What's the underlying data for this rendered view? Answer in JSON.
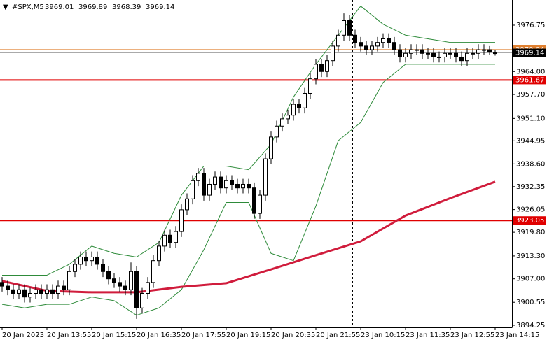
{
  "chart_data": {
    "type": "candlestick",
    "title": "#SPX,M5",
    "header_values": [
      3969.01,
      3969.89,
      3968.39,
      3969.14
    ],
    "categories": [
      "20 Jan 2023",
      null,
      null,
      null,
      null,
      null,
      null,
      null,
      "20 Jan 13:55",
      null,
      null,
      null,
      null,
      null,
      null,
      null,
      "20 Jan 15:15",
      null,
      null,
      null,
      null,
      null,
      null,
      null,
      "20 Jan 16:35",
      null,
      null,
      null,
      null,
      null,
      null,
      null,
      "20 Jan 17:55",
      null,
      null,
      null,
      null,
      null,
      null,
      null,
      "20 Jan 19:15",
      null,
      null,
      null,
      null,
      null,
      null,
      null,
      "20 Jan 20:35",
      null,
      null,
      null,
      null,
      null,
      null,
      null,
      "20 Jan 21:55",
      null,
      null,
      null,
      null,
      null,
      null,
      null,
      "23 Jan 10:15",
      null,
      null,
      null,
      null,
      null,
      null,
      null,
      "23 Jan 11:35",
      null,
      null,
      null,
      null,
      null,
      null,
      null,
      "23 Jan 12:55",
      null,
      null,
      null,
      null,
      null,
      null,
      null,
      "23 Jan 14:15"
    ],
    "candles": [
      [
        3906,
        3907.5,
        3903.5,
        3905
      ],
      [
        3905,
        3906.5,
        3902.5,
        3904
      ],
      [
        3904,
        3905.5,
        3901.5,
        3903
      ],
      [
        3903,
        3905.5,
        3901.5,
        3904
      ],
      [
        3904,
        3905.5,
        3900.5,
        3902
      ],
      [
        3902,
        3904.5,
        3900.5,
        3903
      ],
      [
        3903,
        3905.5,
        3901.5,
        3904
      ],
      [
        3904,
        3905.5,
        3901.5,
        3903
      ],
      [
        3903,
        3905.5,
        3901.5,
        3904
      ],
      [
        3904,
        3905.5,
        3901.5,
        3903
      ],
      [
        3903,
        3906.5,
        3901.5,
        3905
      ],
      [
        3905,
        3906.5,
        3902.5,
        3904
      ],
      [
        3904,
        3910.5,
        3902.5,
        3909
      ],
      [
        3909,
        3912.5,
        3907.5,
        3911
      ],
      [
        3911,
        3914.5,
        3909.5,
        3913
      ],
      [
        3913,
        3914.5,
        3910.5,
        3912
      ],
      [
        3912,
        3914.5,
        3910.5,
        3913
      ],
      [
        3913,
        3914.5,
        3909.5,
        3911
      ],
      [
        3911,
        3912.5,
        3907.5,
        3909
      ],
      [
        3909,
        3910.5,
        3905.5,
        3907
      ],
      [
        3907,
        3908.5,
        3904.5,
        3906
      ],
      [
        3906,
        3907.5,
        3903.5,
        3905
      ],
      [
        3905,
        3906.5,
        3902.5,
        3904
      ],
      [
        3904,
        3911.5,
        3902.5,
        3909
      ],
      [
        3909,
        3910.5,
        3896,
        3899
      ],
      [
        3899,
        3904.5,
        3897.5,
        3903
      ],
      [
        3903,
        3907.5,
        3901.5,
        3906
      ],
      [
        3906,
        3913.5,
        3904.5,
        3912
      ],
      [
        3912,
        3917.5,
        3910.5,
        3916
      ],
      [
        3916,
        3920.5,
        3914.5,
        3919
      ],
      [
        3919,
        3920.5,
        3915.5,
        3917
      ],
      [
        3917,
        3921.5,
        3915.5,
        3920
      ],
      [
        3920,
        3927.5,
        3918.5,
        3926
      ],
      [
        3926,
        3930.5,
        3924.5,
        3929
      ],
      [
        3929,
        3935.5,
        3927.5,
        3934
      ],
      [
        3934,
        3937.5,
        3932.5,
        3936
      ],
      [
        3936,
        3937.5,
        3928.5,
        3930
      ],
      [
        3930,
        3934.5,
        3928.5,
        3933
      ],
      [
        3933,
        3936.5,
        3931.5,
        3935
      ],
      [
        3935,
        3936.5,
        3930.5,
        3932
      ],
      [
        3932,
        3935.5,
        3930.5,
        3934
      ],
      [
        3934,
        3935.5,
        3931.5,
        3933
      ],
      [
        3933,
        3934.5,
        3930.5,
        3932
      ],
      [
        3932,
        3934.5,
        3930.5,
        3933
      ],
      [
        3933,
        3934.5,
        3930.5,
        3932
      ],
      [
        3932,
        3933.5,
        3923.5,
        3925
      ],
      [
        3925,
        3931.5,
        3923.5,
        3930
      ],
      [
        3930,
        3941.5,
        3928.5,
        3940
      ],
      [
        3940,
        3947.5,
        3938.5,
        3946
      ],
      [
        3946,
        3950.5,
        3944.5,
        3949
      ],
      [
        3949,
        3952.5,
        3947.5,
        3951
      ],
      [
        3951,
        3953.5,
        3949.5,
        3952
      ],
      [
        3952,
        3956.5,
        3950.5,
        3955
      ],
      [
        3955,
        3956.5,
        3952.5,
        3954
      ],
      [
        3954,
        3959.5,
        3952.5,
        3958
      ],
      [
        3958,
        3963.5,
        3956.5,
        3962
      ],
      [
        3962,
        3967.5,
        3960.5,
        3966
      ],
      [
        3966,
        3967.5,
        3962.5,
        3964
      ],
      [
        3964,
        3968.5,
        3962.5,
        3967
      ],
      [
        3967,
        3972.5,
        3965.5,
        3971
      ],
      [
        3971,
        3975.5,
        3969.5,
        3974
      ],
      [
        3974,
        3980,
        3972.5,
        3978
      ],
      [
        3978,
        3979.5,
        3972.5,
        3974
      ],
      [
        3974,
        3975.5,
        3970.5,
        3972
      ],
      [
        3972,
        3973.5,
        3969.5,
        3971
      ],
      [
        3971,
        3972.5,
        3968.5,
        3970
      ],
      [
        3970,
        3972.5,
        3968.5,
        3971
      ],
      [
        3971,
        3973.5,
        3969.5,
        3972
      ],
      [
        3972,
        3974.5,
        3970.5,
        3973
      ],
      [
        3973,
        3974.5,
        3970.5,
        3972
      ],
      [
        3972,
        3973.5,
        3968.5,
        3970
      ],
      [
        3970,
        3971.5,
        3966.5,
        3968
      ],
      [
        3968,
        3970.5,
        3966.5,
        3969
      ],
      [
        3969,
        3971.5,
        3967.5,
        3970
      ],
      [
        3970,
        3971.5,
        3968.5,
        3970
      ],
      [
        3970,
        3971.5,
        3967.5,
        3969
      ],
      [
        3969,
        3970.5,
        3967.5,
        3969
      ],
      [
        3969,
        3970.5,
        3966.5,
        3968
      ],
      [
        3968,
        3969.5,
        3966.5,
        3968
      ],
      [
        3968,
        3970.5,
        3966.5,
        3969
      ],
      [
        3969,
        3970.5,
        3967.5,
        3969
      ],
      [
        3969,
        3970.5,
        3966.5,
        3968
      ],
      [
        3968,
        3969.5,
        3965.5,
        3967
      ],
      [
        3967,
        3970.5,
        3965.5,
        3969
      ],
      [
        3969,
        3970.5,
        3967.5,
        3969
      ],
      [
        3969,
        3971.5,
        3967.5,
        3970
      ],
      [
        3970,
        3971.5,
        3968.5,
        3970
      ],
      [
        3970,
        3971,
        3968.5,
        3969.5
      ],
      [
        3969.01,
        3969.89,
        3968.39,
        3969.14
      ]
    ],
    "bands": {
      "color": "#2e8b3a",
      "x": [
        0,
        4,
        8,
        12,
        16,
        20,
        24,
        28,
        32,
        36,
        40,
        44,
        48,
        52,
        56,
        60,
        64,
        68,
        72,
        76,
        80,
        84,
        88
      ],
      "upper": [
        3908,
        3908,
        3908,
        3911,
        3916,
        3914,
        3913,
        3917,
        3930,
        3938,
        3938,
        3937,
        3944,
        3957,
        3966,
        3974,
        3982,
        3977,
        3974,
        3973,
        3972,
        3972,
        3972
      ],
      "lower": [
        3900,
        3899,
        3900,
        3900,
        3902,
        3901,
        3897,
        3899,
        3904,
        3915,
        3928,
        3928,
        3914,
        3912,
        3927,
        3945,
        3950,
        3961,
        3966,
        3966,
        3966,
        3966,
        3966
      ]
    },
    "ma": {
      "color": "#d01c3c",
      "x": [
        0,
        8,
        16,
        24,
        32,
        40,
        48,
        56,
        64,
        72,
        80,
        88
      ],
      "values": [
        3906.4,
        3903.7,
        3903.3,
        3903.3,
        3904.8,
        3905.8,
        3909.6,
        3913.5,
        3917.3,
        3924.4,
        3929.2,
        3933.7
      ]
    },
    "hlines": [
      {
        "value": 3970.04,
        "color": "#e08030"
      },
      {
        "value": 3961.67,
        "color": "#e00000"
      },
      {
        "value": 3923.05,
        "color": "#e00000"
      }
    ],
    "current_price": 3969.14,
    "ylim": [
      3893.67,
      3983.67
    ],
    "yticks": [
      3976.75,
      {
        "value": 3964,
        "label": "3964.00"
      },
      {
        "value": 3957.7,
        "label": "3957.70"
      },
      {
        "value": 3951.1,
        "label": "3951.10"
      },
      3944.95,
      {
        "value": 3938.6,
        "label": "3938.60"
      },
      3932.35,
      3926.05,
      {
        "value": 3919.8,
        "label": "3919.80"
      },
      {
        "value": 3913.3,
        "label": "3913.30"
      },
      {
        "value": 3907,
        "label": "3907.00"
      },
      3900.55,
      3894.25
    ]
  }
}
